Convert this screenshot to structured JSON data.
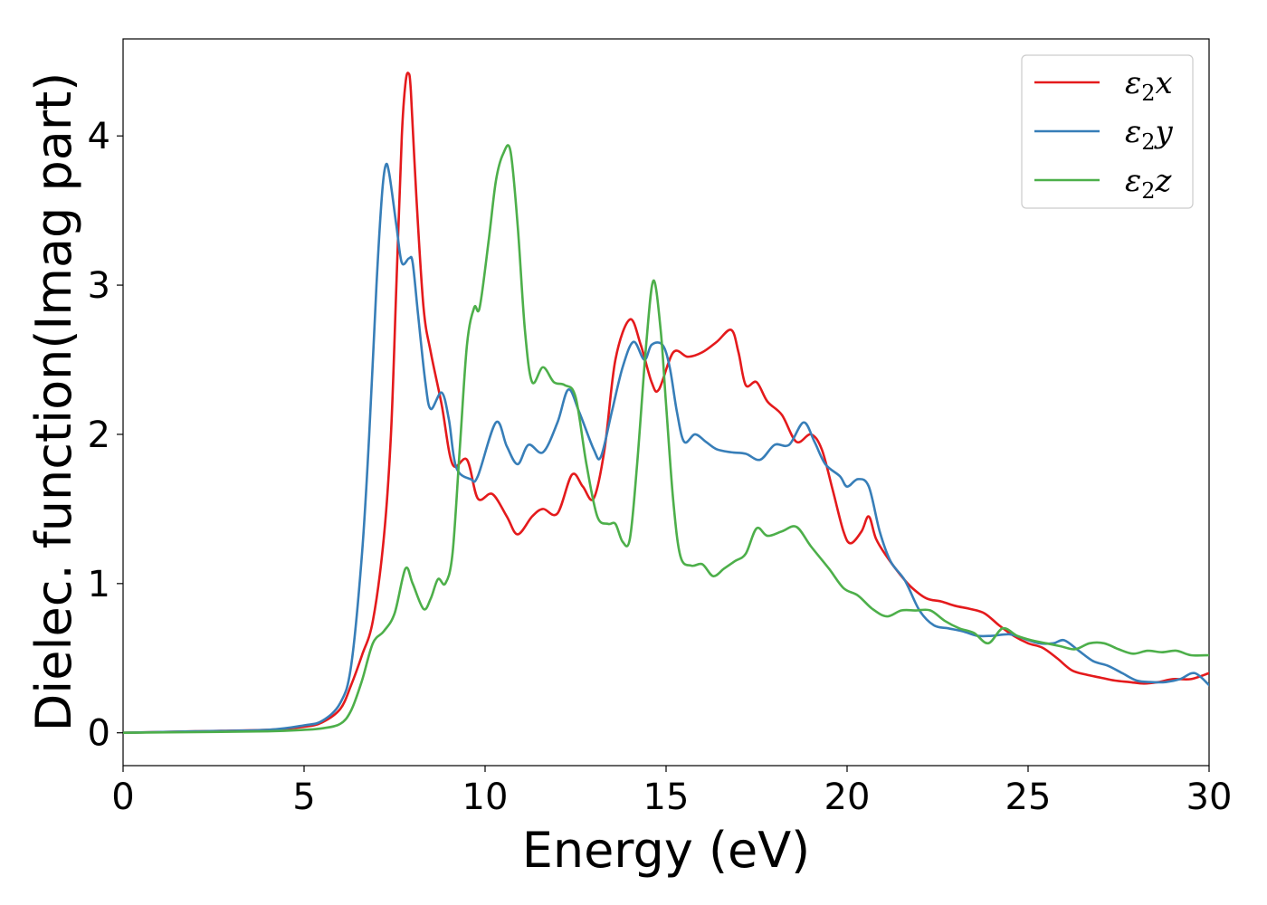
{
  "chart_data": {
    "type": "line",
    "xlabel": "Energy (eV)",
    "ylabel": "Dielec. function(Imag part)",
    "xlim": [
      0,
      30
    ],
    "ylim": [
      -0.22,
      4.65
    ],
    "xticks": [
      0,
      5,
      10,
      15,
      20,
      25,
      30
    ],
    "yticks": [
      0,
      1,
      2,
      3,
      4
    ],
    "legend_position": "top-right",
    "grid": false,
    "series": [
      {
        "name": "ε₂x",
        "legend_base": "ε",
        "legend_sub": "2",
        "legend_suffix": "x",
        "color": "#e41a1c",
        "points": [
          [
            0,
            0
          ],
          [
            2,
            0.01
          ],
          [
            4,
            0.02
          ],
          [
            5,
            0.04
          ],
          [
            5.5,
            0.07
          ],
          [
            6,
            0.16
          ],
          [
            6.3,
            0.32
          ],
          [
            6.6,
            0.52
          ],
          [
            6.9,
            0.75
          ],
          [
            7.2,
            1.3
          ],
          [
            7.4,
            2.0
          ],
          [
            7.55,
            3.0
          ],
          [
            7.7,
            4.0
          ],
          [
            7.8,
            4.35
          ],
          [
            7.88,
            4.42
          ],
          [
            7.95,
            4.3
          ],
          [
            8.1,
            3.6
          ],
          [
            8.3,
            2.85
          ],
          [
            8.5,
            2.55
          ],
          [
            8.8,
            2.2
          ],
          [
            9.1,
            1.8
          ],
          [
            9.5,
            1.83
          ],
          [
            9.8,
            1.57
          ],
          [
            10.2,
            1.6
          ],
          [
            10.6,
            1.45
          ],
          [
            10.9,
            1.33
          ],
          [
            11.3,
            1.45
          ],
          [
            11.6,
            1.5
          ],
          [
            12,
            1.47
          ],
          [
            12.4,
            1.73
          ],
          [
            12.7,
            1.65
          ],
          [
            13,
            1.57
          ],
          [
            13.3,
            1.9
          ],
          [
            13.6,
            2.5
          ],
          [
            14,
            2.77
          ],
          [
            14.3,
            2.6
          ],
          [
            14.6,
            2.35
          ],
          [
            14.8,
            2.3
          ],
          [
            15.2,
            2.55
          ],
          [
            15.6,
            2.52
          ],
          [
            16,
            2.55
          ],
          [
            16.4,
            2.62
          ],
          [
            16.8,
            2.7
          ],
          [
            17,
            2.55
          ],
          [
            17.2,
            2.33
          ],
          [
            17.5,
            2.35
          ],
          [
            17.8,
            2.22
          ],
          [
            18.2,
            2.13
          ],
          [
            18.6,
            1.95
          ],
          [
            19,
            2.0
          ],
          [
            19.3,
            1.9
          ],
          [
            19.6,
            1.63
          ],
          [
            19.9,
            1.35
          ],
          [
            20.1,
            1.27
          ],
          [
            20.4,
            1.35
          ],
          [
            20.6,
            1.45
          ],
          [
            20.8,
            1.3
          ],
          [
            21.1,
            1.18
          ],
          [
            21.5,
            1.05
          ],
          [
            21.8,
            0.97
          ],
          [
            22.2,
            0.9
          ],
          [
            22.6,
            0.88
          ],
          [
            23,
            0.85
          ],
          [
            23.4,
            0.83
          ],
          [
            23.8,
            0.8
          ],
          [
            24.2,
            0.72
          ],
          [
            24.6,
            0.65
          ],
          [
            25,
            0.6
          ],
          [
            25.4,
            0.57
          ],
          [
            25.8,
            0.5
          ],
          [
            26.2,
            0.42
          ],
          [
            26.6,
            0.39
          ],
          [
            27,
            0.37
          ],
          [
            27.4,
            0.35
          ],
          [
            27.8,
            0.34
          ],
          [
            28.2,
            0.33
          ],
          [
            28.6,
            0.34
          ],
          [
            29,
            0.36
          ],
          [
            29.5,
            0.36
          ],
          [
            30,
            0.4
          ]
        ]
      },
      {
        "name": "ε₂y",
        "legend_base": "ε",
        "legend_sub": "2",
        "legend_suffix": "y",
        "color": "#377eb8",
        "points": [
          [
            0,
            0
          ],
          [
            2,
            0.01
          ],
          [
            4,
            0.02
          ],
          [
            5,
            0.05
          ],
          [
            5.5,
            0.08
          ],
          [
            6,
            0.2
          ],
          [
            6.3,
            0.45
          ],
          [
            6.6,
            1.2
          ],
          [
            6.8,
            2.0
          ],
          [
            7.0,
            3.0
          ],
          [
            7.15,
            3.6
          ],
          [
            7.25,
            3.8
          ],
          [
            7.35,
            3.75
          ],
          [
            7.55,
            3.4
          ],
          [
            7.7,
            3.15
          ],
          [
            7.9,
            3.18
          ],
          [
            8.0,
            3.15
          ],
          [
            8.15,
            2.8
          ],
          [
            8.35,
            2.35
          ],
          [
            8.5,
            2.17
          ],
          [
            8.8,
            2.28
          ],
          [
            9.0,
            2.1
          ],
          [
            9.2,
            1.78
          ],
          [
            9.6,
            1.7
          ],
          [
            9.8,
            1.72
          ],
          [
            10.3,
            2.08
          ],
          [
            10.6,
            1.92
          ],
          [
            10.9,
            1.8
          ],
          [
            11.2,
            1.93
          ],
          [
            11.6,
            1.88
          ],
          [
            12,
            2.08
          ],
          [
            12.3,
            2.3
          ],
          [
            12.6,
            2.15
          ],
          [
            13,
            1.9
          ],
          [
            13.2,
            1.85
          ],
          [
            13.5,
            2.15
          ],
          [
            13.8,
            2.45
          ],
          [
            14.1,
            2.62
          ],
          [
            14.4,
            2.5
          ],
          [
            14.6,
            2.6
          ],
          [
            14.9,
            2.6
          ],
          [
            15.1,
            2.45
          ],
          [
            15.3,
            2.15
          ],
          [
            15.5,
            1.95
          ],
          [
            15.8,
            2.0
          ],
          [
            16.1,
            1.95
          ],
          [
            16.4,
            1.9
          ],
          [
            16.8,
            1.88
          ],
          [
            17.2,
            1.87
          ],
          [
            17.6,
            1.83
          ],
          [
            18,
            1.93
          ],
          [
            18.4,
            1.93
          ],
          [
            18.8,
            2.08
          ],
          [
            19.1,
            1.95
          ],
          [
            19.4,
            1.8
          ],
          [
            19.8,
            1.72
          ],
          [
            20,
            1.65
          ],
          [
            20.3,
            1.7
          ],
          [
            20.6,
            1.65
          ],
          [
            20.9,
            1.35
          ],
          [
            21.2,
            1.15
          ],
          [
            21.6,
            1.02
          ],
          [
            22,
            0.82
          ],
          [
            22.4,
            0.72
          ],
          [
            22.8,
            0.7
          ],
          [
            23.2,
            0.68
          ],
          [
            23.6,
            0.65
          ],
          [
            24,
            0.65
          ],
          [
            24.5,
            0.66
          ],
          [
            24.9,
            0.63
          ],
          [
            25.3,
            0.6
          ],
          [
            25.7,
            0.6
          ],
          [
            26,
            0.62
          ],
          [
            26.4,
            0.55
          ],
          [
            26.8,
            0.48
          ],
          [
            27.2,
            0.45
          ],
          [
            27.6,
            0.4
          ],
          [
            28,
            0.35
          ],
          [
            28.4,
            0.34
          ],
          [
            28.8,
            0.34
          ],
          [
            29.2,
            0.36
          ],
          [
            29.6,
            0.4
          ],
          [
            30,
            0.32
          ]
        ]
      },
      {
        "name": "ε₂z",
        "legend_base": "ε",
        "legend_sub": "2",
        "legend_suffix": "z",
        "color": "#4daf4a",
        "points": [
          [
            0,
            0
          ],
          [
            2,
            0.005
          ],
          [
            4,
            0.01
          ],
          [
            5,
            0.02
          ],
          [
            5.5,
            0.03
          ],
          [
            6,
            0.06
          ],
          [
            6.3,
            0.15
          ],
          [
            6.6,
            0.35
          ],
          [
            6.9,
            0.6
          ],
          [
            7.2,
            0.68
          ],
          [
            7.5,
            0.8
          ],
          [
            7.8,
            1.1
          ],
          [
            8.0,
            1.0
          ],
          [
            8.3,
            0.83
          ],
          [
            8.5,
            0.9
          ],
          [
            8.7,
            1.03
          ],
          [
            8.9,
            1.0
          ],
          [
            9.1,
            1.2
          ],
          [
            9.3,
            1.9
          ],
          [
            9.5,
            2.6
          ],
          [
            9.7,
            2.85
          ],
          [
            9.85,
            2.85
          ],
          [
            10.1,
            3.3
          ],
          [
            10.3,
            3.7
          ],
          [
            10.5,
            3.88
          ],
          [
            10.7,
            3.9
          ],
          [
            10.9,
            3.4
          ],
          [
            11.1,
            2.7
          ],
          [
            11.3,
            2.35
          ],
          [
            11.6,
            2.45
          ],
          [
            11.9,
            2.35
          ],
          [
            12.2,
            2.33
          ],
          [
            12.5,
            2.25
          ],
          [
            12.8,
            1.8
          ],
          [
            13.1,
            1.45
          ],
          [
            13.4,
            1.4
          ],
          [
            13.6,
            1.4
          ],
          [
            13.8,
            1.28
          ],
          [
            14.0,
            1.3
          ],
          [
            14.2,
            1.8
          ],
          [
            14.45,
            2.6
          ],
          [
            14.65,
            3.03
          ],
          [
            14.85,
            2.7
          ],
          [
            15.0,
            2.2
          ],
          [
            15.2,
            1.55
          ],
          [
            15.4,
            1.18
          ],
          [
            15.7,
            1.12
          ],
          [
            16.0,
            1.13
          ],
          [
            16.3,
            1.05
          ],
          [
            16.6,
            1.1
          ],
          [
            16.9,
            1.15
          ],
          [
            17.2,
            1.2
          ],
          [
            17.5,
            1.37
          ],
          [
            17.8,
            1.32
          ],
          [
            18.2,
            1.35
          ],
          [
            18.6,
            1.38
          ],
          [
            19.0,
            1.25
          ],
          [
            19.5,
            1.1
          ],
          [
            19.9,
            0.97
          ],
          [
            20.3,
            0.92
          ],
          [
            20.7,
            0.83
          ],
          [
            21.1,
            0.78
          ],
          [
            21.5,
            0.82
          ],
          [
            21.9,
            0.82
          ],
          [
            22.3,
            0.82
          ],
          [
            22.7,
            0.75
          ],
          [
            23.1,
            0.7
          ],
          [
            23.5,
            0.67
          ],
          [
            23.9,
            0.6
          ],
          [
            24.3,
            0.7
          ],
          [
            24.7,
            0.65
          ],
          [
            25.1,
            0.62
          ],
          [
            25.5,
            0.6
          ],
          [
            25.9,
            0.58
          ],
          [
            26.3,
            0.56
          ],
          [
            26.7,
            0.6
          ],
          [
            27.1,
            0.6
          ],
          [
            27.5,
            0.56
          ],
          [
            27.9,
            0.53
          ],
          [
            28.3,
            0.55
          ],
          [
            28.7,
            0.54
          ],
          [
            29.1,
            0.55
          ],
          [
            29.5,
            0.52
          ],
          [
            30,
            0.52
          ]
        ]
      }
    ]
  }
}
